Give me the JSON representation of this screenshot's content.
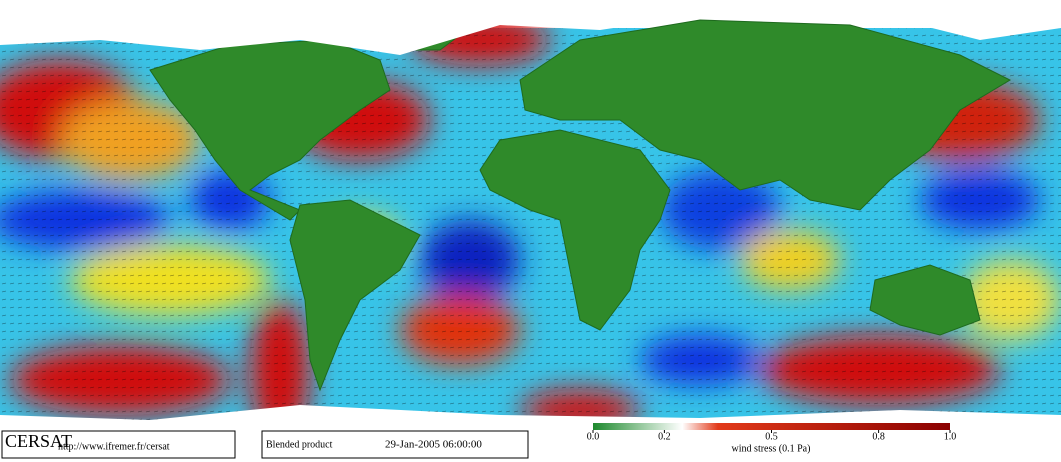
{
  "logo": "CERSAT",
  "url": "http://www.ifremer.fr/cersat",
  "product": "Blended product",
  "timestamp": "29-Jan-2005 06:00:00",
  "colorbar": {
    "label": "wind stress (0.1 Pa)",
    "lim": [
      0,
      1
    ],
    "ticks": [
      {
        "value": 0,
        "label": "0.0"
      },
      0.2,
      0.5,
      0.8,
      {
        "value": 1,
        "label": "1.0"
      }
    ]
  }
}
